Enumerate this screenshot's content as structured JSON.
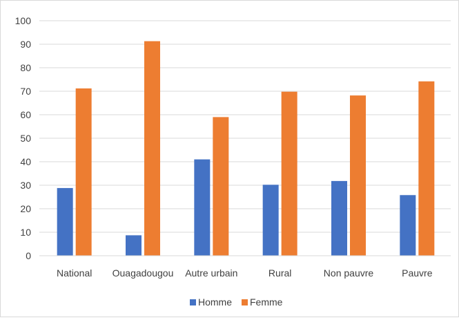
{
  "chart_data": {
    "type": "bar",
    "title": "",
    "xlabel": "",
    "ylabel": "",
    "categories": [
      "National",
      "Ouagadougou",
      "Autre urbain",
      "Rural",
      "Non pauvre",
      "Pauvre"
    ],
    "series": [
      {
        "name": "Homme",
        "color": "#4472c4",
        "values": [
          28.8,
          8.7,
          41.0,
          30.2,
          31.8,
          25.8
        ]
      },
      {
        "name": "Femme",
        "color": "#ed7d31",
        "values": [
          71.2,
          91.3,
          59.0,
          69.8,
          68.2,
          74.2
        ]
      }
    ],
    "ylim": [
      0,
      100
    ],
    "yticks": [
      "0",
      "10",
      "20",
      "30",
      "40",
      "50",
      "60",
      "70",
      "80",
      "90",
      "100"
    ],
    "grid": true,
    "gridColor": "#d9d9d9",
    "legend": "bottom-center"
  }
}
